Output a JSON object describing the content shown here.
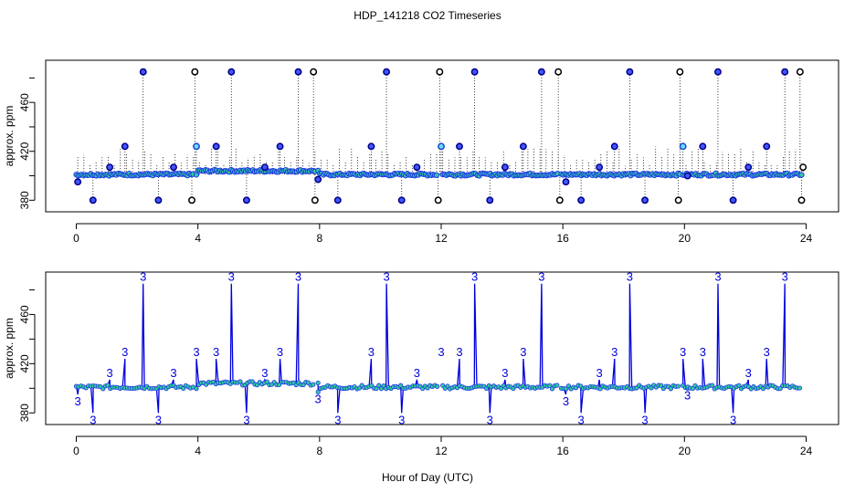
{
  "chart_data": {
    "title": "HDP_141218  CO2 Timeseries",
    "xlabel": "Hour of Day (UTC)",
    "panels": [
      {
        "type": "scatter",
        "ylabel": "approx. ppm",
        "xlim": [
          0,
          24
        ],
        "ylim": [
          375,
          490
        ],
        "x_ticks": [
          0,
          4,
          8,
          12,
          16,
          20,
          24
        ],
        "y_ticks": [
          380,
          420,
          460
        ],
        "baseline": 401,
        "series": [
          {
            "marker": "black-circle",
            "x": [
              3.8,
              3.9,
              7.8,
              7.85,
              11.9,
              11.95,
              15.85,
              15.9,
              19.8,
              19.85,
              23.8,
              23.85,
              23.9
            ],
            "y": [
              380,
              485,
              485,
              380,
              380,
              485,
              485,
              380,
              380,
              485,
              485,
              380,
              407
            ]
          },
          {
            "marker": "blue-circle",
            "x": [
              0.05,
              0.55,
              1.1,
              1.6,
              2.2,
              2.7,
              3.2,
              4.6,
              5.1,
              5.6,
              6.2,
              6.7,
              7.3,
              7.95,
              8.6,
              9.7,
              10.2,
              10.7,
              11.2,
              12.6,
              13.1,
              13.6,
              14.1,
              14.7,
              15.3,
              16.1,
              16.6,
              17.2,
              17.7,
              18.2,
              18.7,
              20.1,
              20.6,
              21.1,
              21.6,
              22.1,
              22.7,
              23.3
            ],
            "y": [
              395,
              380,
              407,
              424,
              485,
              380,
              407,
              424,
              485,
              380,
              407,
              424,
              485,
              397,
              380,
              424,
              485,
              380,
              407,
              424,
              485,
              380,
              407,
              424,
              485,
              395,
              380,
              407,
              424,
              485,
              380,
              400,
              424,
              485,
              380,
              407,
              424,
              485
            ]
          },
          {
            "marker": "cyan-circle",
            "x": [
              3.95,
              12.0,
              19.95
            ],
            "y": [
              424,
              424,
              424
            ]
          }
        ]
      },
      {
        "type": "line",
        "ylabel": "approx. ppm",
        "xlim": [
          0,
          24
        ],
        "ylim": [
          375,
          490
        ],
        "x_ticks": [
          0,
          4,
          8,
          12,
          16,
          20,
          24
        ],
        "y_ticks": [
          380,
          420,
          460
        ],
        "point_label": "3",
        "baseline": 401
      }
    ]
  }
}
